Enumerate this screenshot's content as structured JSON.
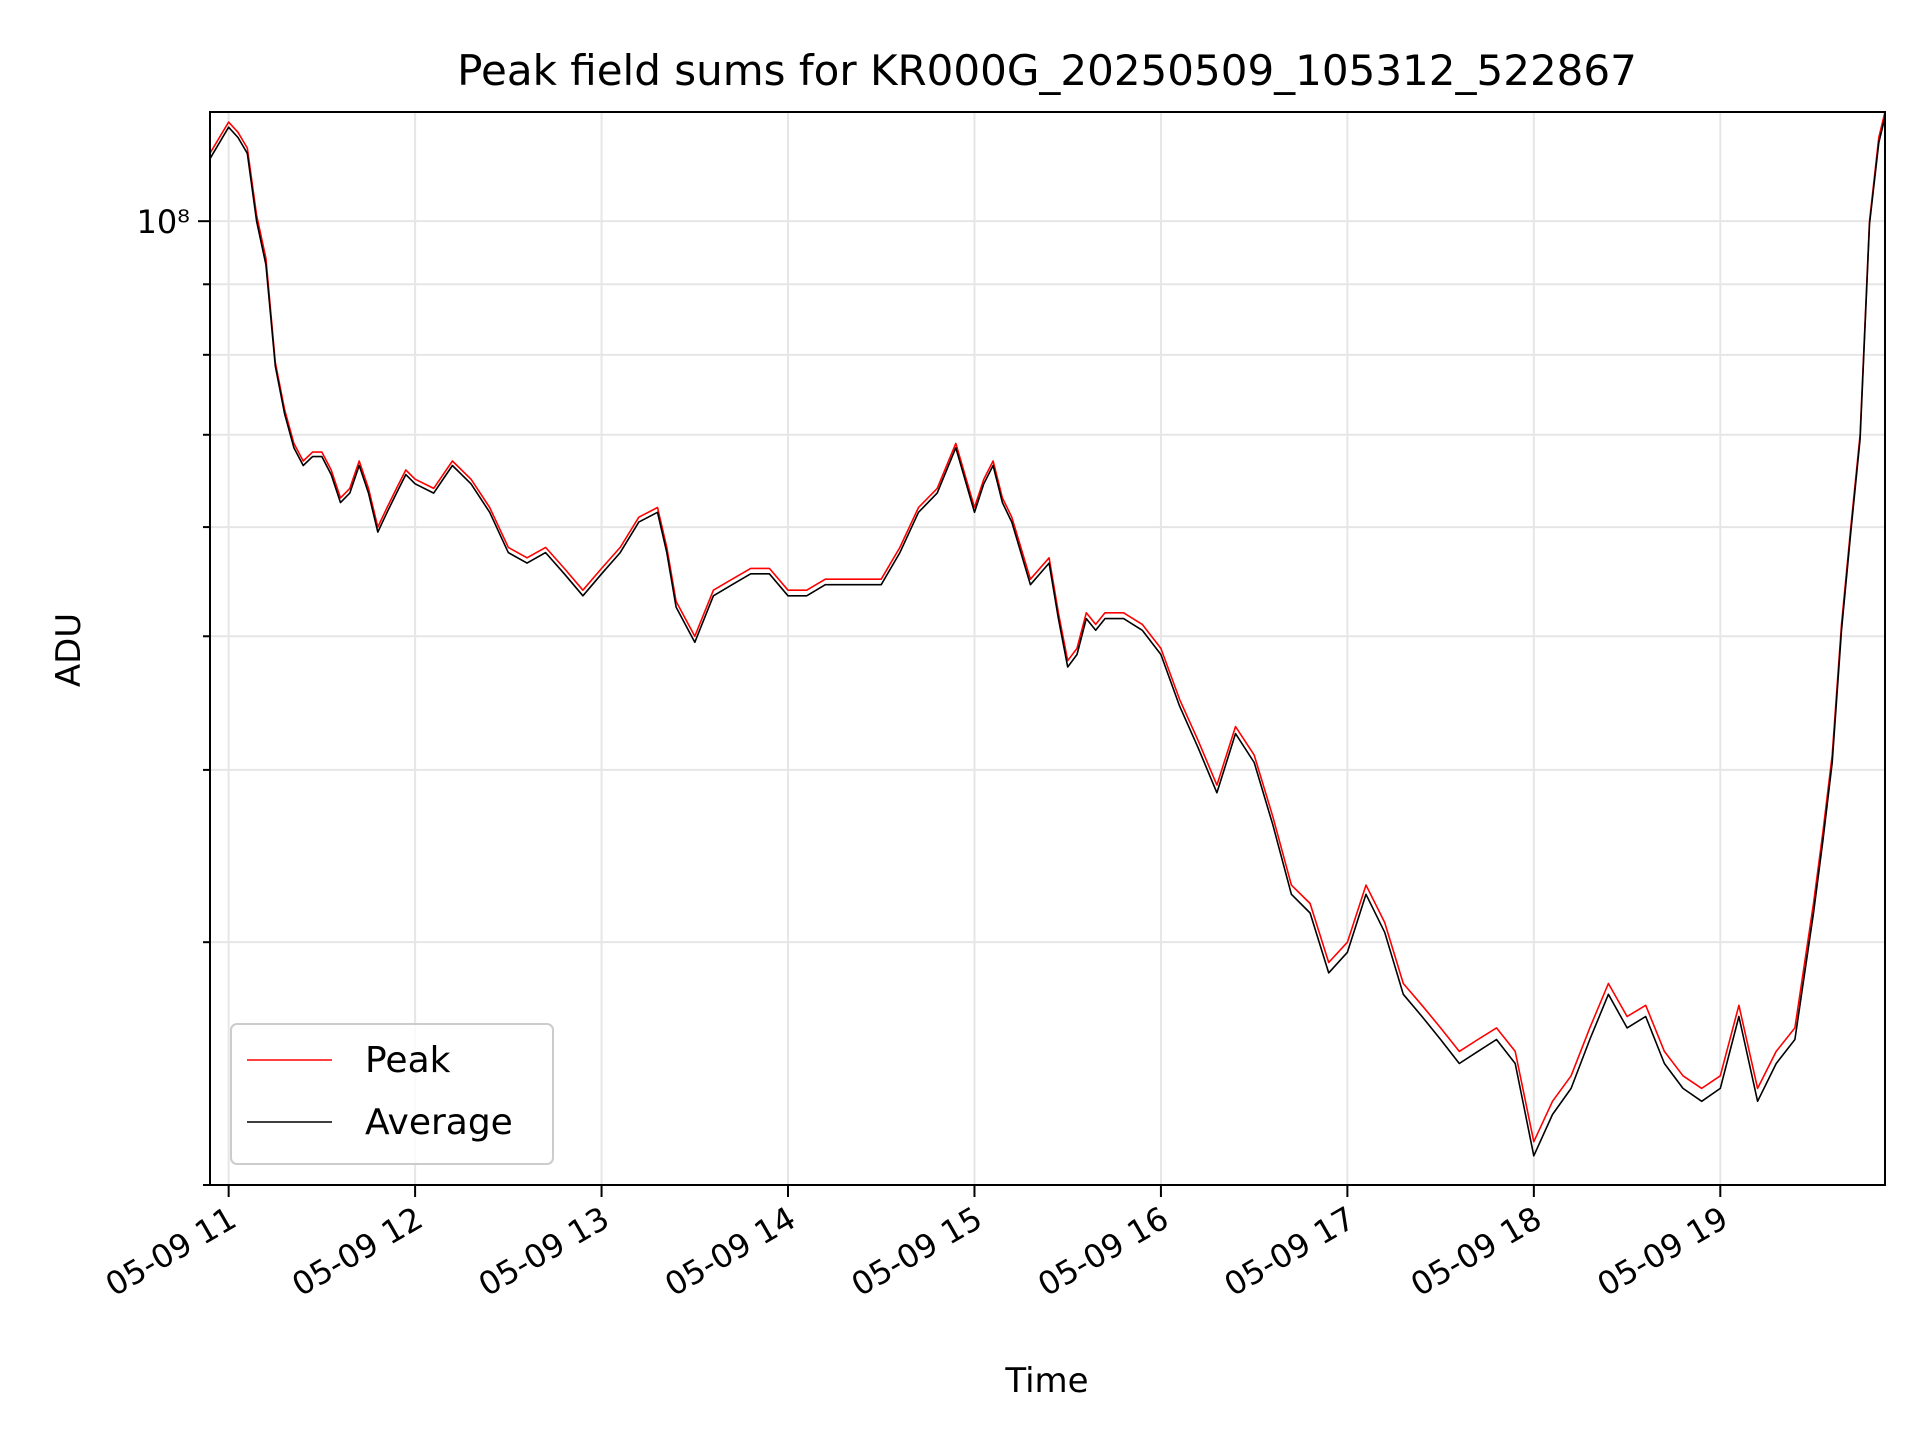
{
  "chart_data": {
    "type": "line",
    "title": "Peak field sums for KR000G_20250509_105312_522867",
    "xlabel": "Time",
    "ylabel": "ADU",
    "y_scale": "log",
    "y_tick_label": "10⁸",
    "x_ticks": [
      "05-09 11",
      "05-09 12",
      "05-09 13",
      "05-09 14",
      "05-09 15",
      "05-09 16",
      "05-09 17",
      "05-09 18",
      "05-09 19"
    ],
    "xlim": [
      "2025-05-09 10:54",
      "2025-05-09 19:53"
    ],
    "ylim": [
      20000000,
      120000000
    ],
    "grid": true,
    "legend_position": "lower-left",
    "x": [
      "2025-05-09 10:54",
      "2025-05-09 11:00",
      "2025-05-09 11:03",
      "2025-05-09 11:06",
      "2025-05-09 11:09",
      "2025-05-09 11:12",
      "2025-05-09 11:15",
      "2025-05-09 11:18",
      "2025-05-09 11:21",
      "2025-05-09 11:24",
      "2025-05-09 11:27",
      "2025-05-09 11:30",
      "2025-05-09 11:33",
      "2025-05-09 11:36",
      "2025-05-09 11:39",
      "2025-05-09 11:42",
      "2025-05-09 11:45",
      "2025-05-09 11:48",
      "2025-05-09 11:51",
      "2025-05-09 11:54",
      "2025-05-09 11:57",
      "2025-05-09 12:00",
      "2025-05-09 12:06",
      "2025-05-09 12:12",
      "2025-05-09 12:18",
      "2025-05-09 12:24",
      "2025-05-09 12:30",
      "2025-05-09 12:36",
      "2025-05-09 12:42",
      "2025-05-09 12:48",
      "2025-05-09 12:54",
      "2025-05-09 13:00",
      "2025-05-09 13:06",
      "2025-05-09 13:12",
      "2025-05-09 13:18",
      "2025-05-09 13:21",
      "2025-05-09 13:24",
      "2025-05-09 13:30",
      "2025-05-09 13:36",
      "2025-05-09 13:42",
      "2025-05-09 13:48",
      "2025-05-09 13:54",
      "2025-05-09 14:00",
      "2025-05-09 14:06",
      "2025-05-09 14:12",
      "2025-05-09 14:18",
      "2025-05-09 14:24",
      "2025-05-09 14:30",
      "2025-05-09 14:36",
      "2025-05-09 14:42",
      "2025-05-09 14:48",
      "2025-05-09 14:54",
      "2025-05-09 15:00",
      "2025-05-09 15:03",
      "2025-05-09 15:06",
      "2025-05-09 15:09",
      "2025-05-09 15:12",
      "2025-05-09 15:18",
      "2025-05-09 15:24",
      "2025-05-09 15:27",
      "2025-05-09 15:30",
      "2025-05-09 15:33",
      "2025-05-09 15:36",
      "2025-05-09 15:39",
      "2025-05-09 15:42",
      "2025-05-09 15:48",
      "2025-05-09 15:54",
      "2025-05-09 16:00",
      "2025-05-09 16:06",
      "2025-05-09 16:12",
      "2025-05-09 16:18",
      "2025-05-09 16:24",
      "2025-05-09 16:30",
      "2025-05-09 16:36",
      "2025-05-09 16:42",
      "2025-05-09 16:48",
      "2025-05-09 16:54",
      "2025-05-09 17:00",
      "2025-05-09 17:06",
      "2025-05-09 17:12",
      "2025-05-09 17:18",
      "2025-05-09 17:24",
      "2025-05-09 17:30",
      "2025-05-09 17:36",
      "2025-05-09 17:42",
      "2025-05-09 17:48",
      "2025-05-09 17:54",
      "2025-05-09 18:00",
      "2025-05-09 18:06",
      "2025-05-09 18:12",
      "2025-05-09 18:18",
      "2025-05-09 18:24",
      "2025-05-09 18:30",
      "2025-05-09 18:36",
      "2025-05-09 18:42",
      "2025-05-09 18:48",
      "2025-05-09 18:54",
      "2025-05-09 19:00",
      "2025-05-09 19:06",
      "2025-05-09 19:12",
      "2025-05-09 19:18",
      "2025-05-09 19:24",
      "2025-05-09 19:30",
      "2025-05-09 19:33",
      "2025-05-09 19:36",
      "2025-05-09 19:39",
      "2025-05-09 19:42",
      "2025-05-09 19:45",
      "2025-05-09 19:48",
      "2025-05-09 19:51",
      "2025-05-09 19:53"
    ],
    "series": [
      {
        "name": "Peak",
        "color": "#ff0000",
        "values": [
          112000000,
          118000000,
          116000000,
          113000000,
          101000000,
          94000000,
          79000000,
          73000000,
          69000000,
          67000000,
          68000000,
          68000000,
          66000000,
          63000000,
          64000000,
          67000000,
          64000000,
          60000000,
          62000000,
          64000000,
          66000000,
          65000000,
          64000000,
          67000000,
          65000000,
          62000000,
          58000000,
          57000000,
          58000000,
          56000000,
          54000000,
          56000000,
          58000000,
          61000000,
          62000000,
          58000000,
          53000000,
          50000000,
          54000000,
          55000000,
          56000000,
          56000000,
          54000000,
          54000000,
          55000000,
          55000000,
          55000000,
          55000000,
          58000000,
          62000000,
          64000000,
          69000000,
          62000000,
          65000000,
          67000000,
          63000000,
          61000000,
          55000000,
          57000000,
          52000000,
          48000000,
          49000000,
          52000000,
          51000000,
          52000000,
          52000000,
          51000000,
          49000000,
          45000000,
          42000000,
          39000000,
          43000000,
          41000000,
          37000000,
          33000000,
          32000000,
          29000000,
          30000000,
          33000000,
          31000000,
          28000000,
          27000000,
          26000000,
          25000000,
          25500000,
          26000000,
          25000000,
          21500000,
          23000000,
          24000000,
          26000000,
          28000000,
          26500000,
          27000000,
          25000000,
          24000000,
          23500000,
          24000000,
          27000000,
          23500000,
          25000000,
          26000000,
          32000000,
          36000000,
          41000000,
          51000000,
          60000000,
          70000000,
          100000000,
          115000000,
          120000000
        ]
      },
      {
        "name": "Average",
        "color": "#000000",
        "values": [
          111000000,
          117000000,
          115000000,
          112000000,
          100000000,
          93000000,
          78500000,
          72500000,
          68500000,
          66500000,
          67500000,
          67500000,
          65500000,
          62500000,
          63500000,
          66500000,
          63500000,
          59500000,
          61500000,
          63500000,
          65500000,
          64500000,
          63500000,
          66500000,
          64500000,
          61500000,
          57500000,
          56500000,
          57500000,
          55500000,
          53500000,
          55500000,
          57500000,
          60500000,
          61500000,
          57500000,
          52500000,
          49500000,
          53500000,
          54500000,
          55500000,
          55500000,
          53500000,
          53500000,
          54500000,
          54500000,
          54500000,
          54500000,
          57500000,
          61500000,
          63500000,
          68500000,
          61500000,
          64500000,
          66500000,
          62500000,
          60500000,
          54500000,
          56500000,
          51500000,
          47500000,
          48500000,
          51500000,
          50500000,
          51500000,
          51500000,
          50500000,
          48500000,
          44500000,
          41500000,
          38500000,
          42500000,
          40500000,
          36500000,
          32500000,
          31500000,
          28500000,
          29500000,
          32500000,
          30500000,
          27500000,
          26500000,
          25500000,
          24500000,
          25000000,
          25500000,
          24500000,
          21000000,
          22500000,
          23500000,
          25500000,
          27500000,
          26000000,
          26500000,
          24500000,
          23500000,
          23000000,
          23500000,
          26500000,
          23000000,
          24500000,
          25500000,
          31500000,
          35500000,
          40500000,
          50500000,
          59500000,
          69500000,
          99500000,
          114000000,
          119000000
        ]
      }
    ]
  }
}
